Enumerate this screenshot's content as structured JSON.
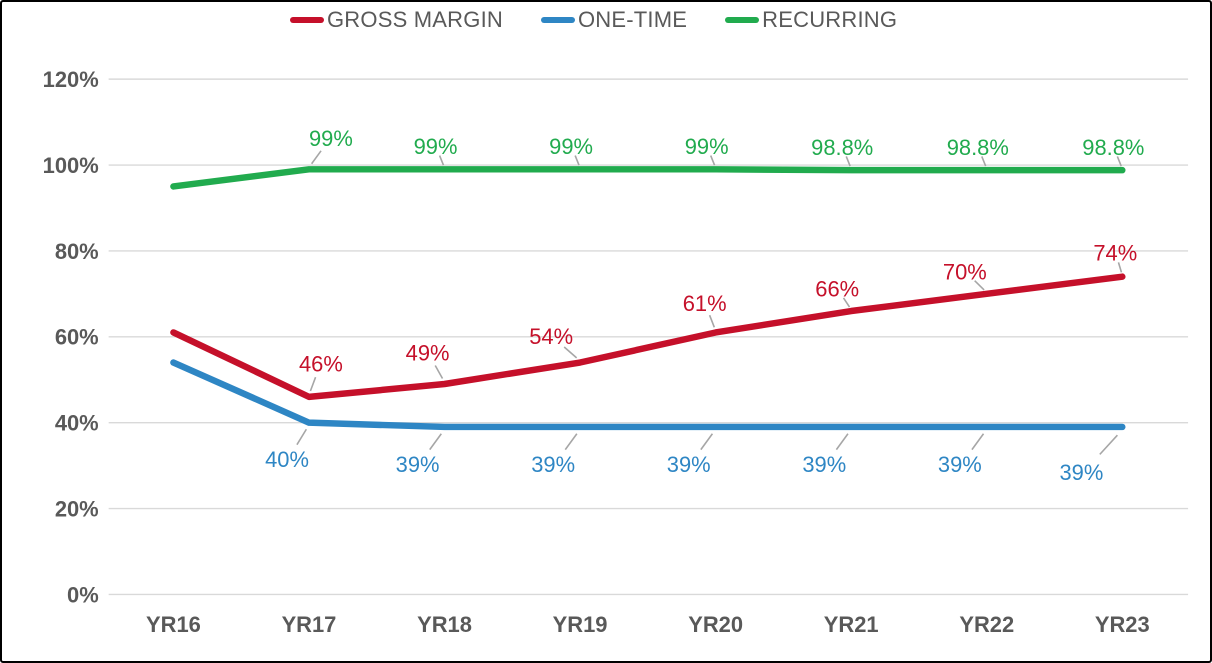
{
  "legend": [
    {
      "label": "GROSS MARGIN",
      "color": "#C5102A"
    },
    {
      "label": "ONE-TIME",
      "color": "#2E86C4"
    },
    {
      "label": "RECURRING",
      "color": "#21AB4E"
    }
  ],
  "chart_data": {
    "type": "line",
    "title": "",
    "categories": [
      "YR16",
      "YR17",
      "YR18",
      "YR19",
      "YR20",
      "YR21",
      "YR22",
      "YR23"
    ],
    "series": [
      {
        "name": "GROSS MARGIN",
        "color": "#C5102A",
        "values": [
          61,
          46,
          49,
          54,
          61,
          66,
          70,
          74
        ],
        "point_labels": [
          null,
          "46%",
          "49%",
          "54%",
          "61%",
          "66%",
          "70%",
          "74%"
        ]
      },
      {
        "name": "ONE-TIME",
        "color": "#2E86C4",
        "values": [
          54,
          40,
          39,
          39,
          39,
          39,
          39,
          39
        ],
        "point_labels": [
          null,
          "40%",
          "39%",
          "39%",
          "39%",
          "39%",
          "39%",
          "39%"
        ]
      },
      {
        "name": "RECURRING",
        "color": "#21AB4E",
        "values": [
          95,
          99,
          99,
          99,
          99,
          98.8,
          98.8,
          98.8
        ],
        "point_labels": [
          null,
          "99%",
          "99%",
          "99%",
          "99%",
          "98.8%",
          "98.8%",
          "98.8%"
        ]
      }
    ],
    "y_ticks": [
      "0%",
      "20%",
      "40%",
      "60%",
      "80%",
      "100%",
      "120%"
    ],
    "y_tick_values": [
      0,
      20,
      40,
      60,
      80,
      100,
      120
    ],
    "ylim": [
      0,
      120
    ],
    "xlabel": "",
    "ylabel": "",
    "grid": true,
    "legend_position": "top"
  },
  "colors": {
    "grid": "#D9D9D9",
    "axis_text": "#595959",
    "leader": "#A6A6A6",
    "background": "#FFFFFF",
    "border": "#000000"
  }
}
